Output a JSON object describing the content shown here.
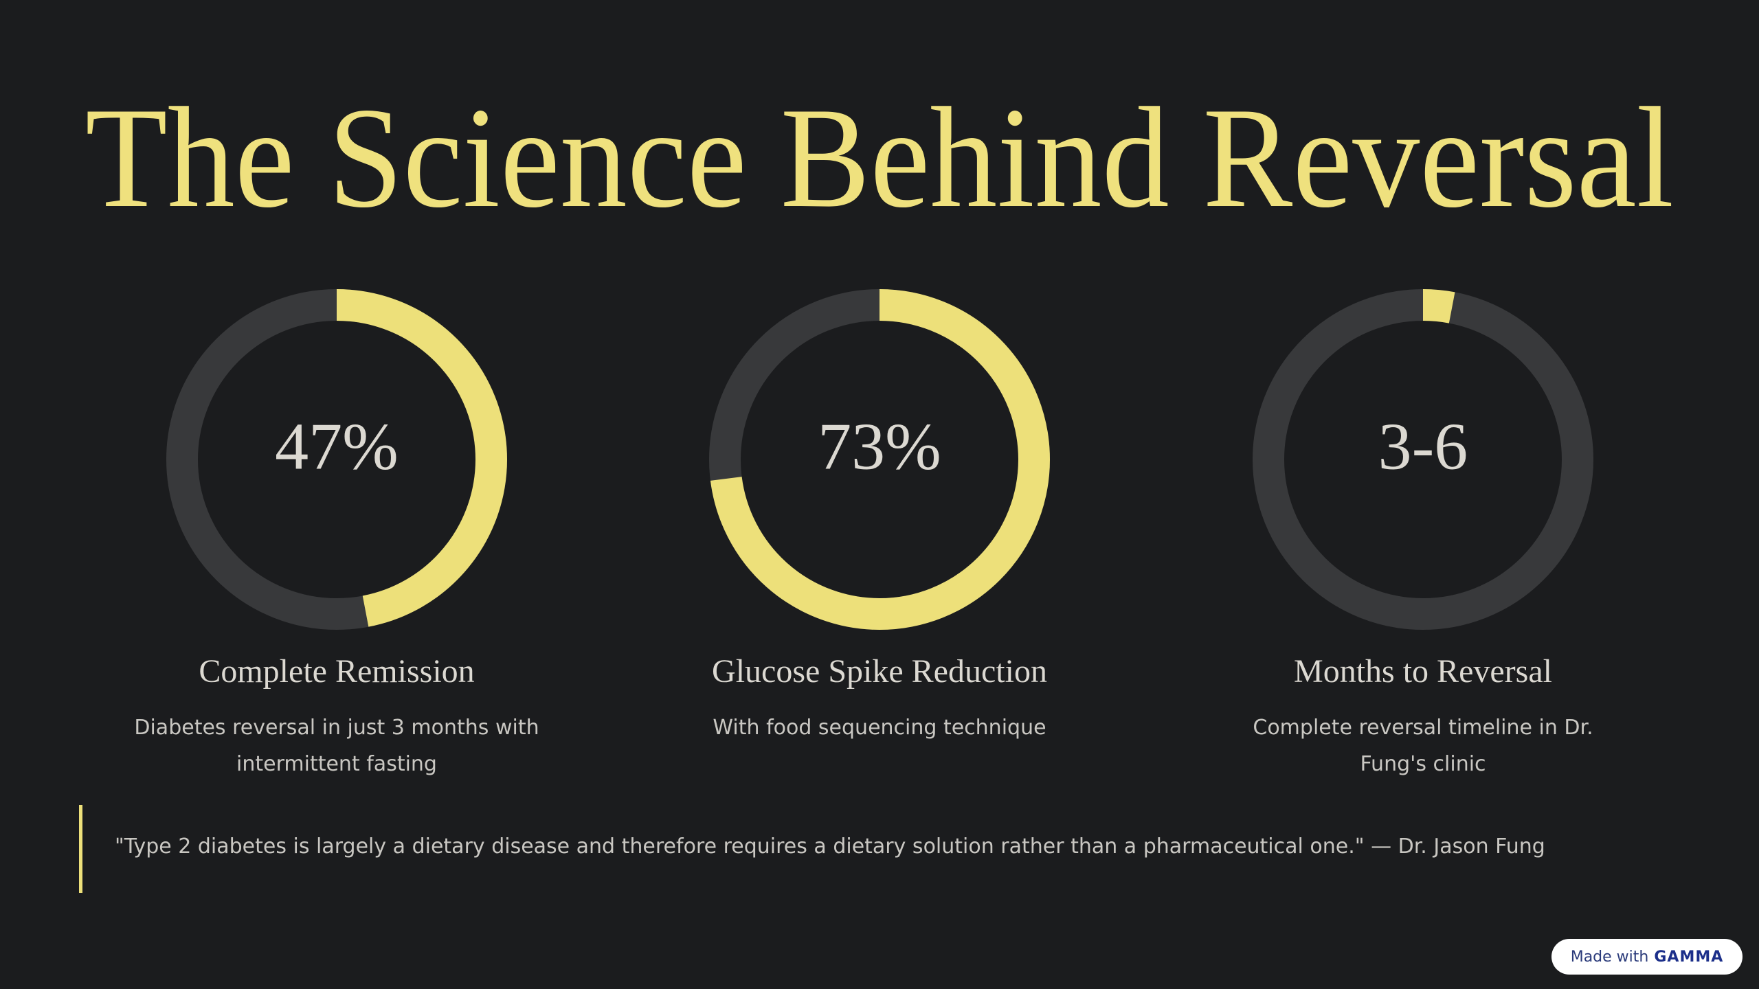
{
  "title": "The Science Behind Reversal",
  "cards": [
    {
      "value_label": "47%",
      "percent": 47,
      "heading": "Complete Remission",
      "description": "Diabetes reversal in just 3 months with intermittent fasting"
    },
    {
      "value_label": "73%",
      "percent": 73,
      "heading": "Glucose Spike Reduction",
      "description": "With food sequencing technique"
    },
    {
      "value_label": "3-6",
      "percent": 3,
      "heading": "Months to Reversal",
      "description": "Complete reversal timeline in Dr. Fung's clinic"
    }
  ],
  "quote": "\"Type 2 diabetes is largely a dietary disease and therefore requires a dietary solution rather than a pharmaceutical one.\" — Dr. Jason Fung",
  "badge": {
    "text": "Made with",
    "brand": "GAMMA"
  }
}
